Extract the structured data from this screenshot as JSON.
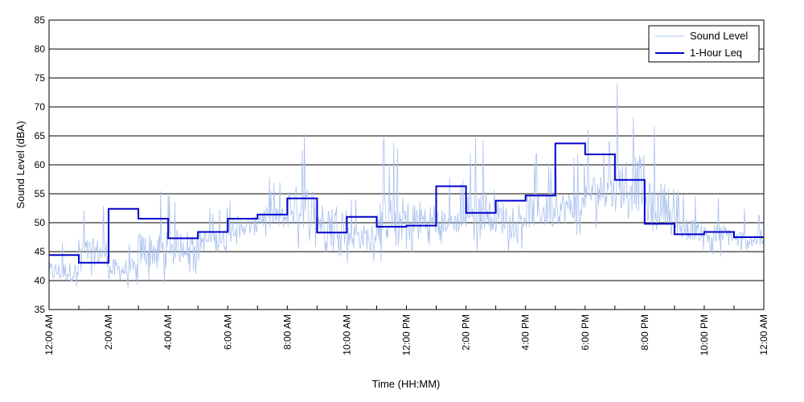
{
  "chart_data": {
    "type": "line",
    "title": "",
    "xlabel": "Time (HH:MM)",
    "ylabel": "Sound Level (dBA)",
    "xlim": [
      0,
      24
    ],
    "ylim": [
      35,
      85
    ],
    "y_ticks": [
      35,
      40,
      45,
      50,
      55,
      60,
      65,
      70,
      75,
      80,
      85
    ],
    "x_ticks": [
      {
        "hour": 0,
        "label": "12:00 AM"
      },
      {
        "hour": 2,
        "label": "2:00 AM"
      },
      {
        "hour": 4,
        "label": "4:00 AM"
      },
      {
        "hour": 6,
        "label": "6:00 AM"
      },
      {
        "hour": 8,
        "label": "8:00 AM"
      },
      {
        "hour": 10,
        "label": "10:00 AM"
      },
      {
        "hour": 12,
        "label": "12:00 PM"
      },
      {
        "hour": 14,
        "label": "2:00 PM"
      },
      {
        "hour": 16,
        "label": "4:00 PM"
      },
      {
        "hour": 18,
        "label": "6:00 PM"
      },
      {
        "hour": 20,
        "label": "8:00 PM"
      },
      {
        "hour": 22,
        "label": "10:00 PM"
      },
      {
        "hour": 24,
        "label": "12:00 AM"
      }
    ],
    "minor_x_ticks_every_hours": 1,
    "grid": {
      "horizontal": true,
      "vertical": false
    },
    "legend": {
      "placement": "top-right"
    },
    "series": [
      {
        "name": "Sound Level",
        "color": "#a9c1ee",
        "style": "thin-line",
        "hourly_min": [
          38,
          40,
          38,
          39,
          41,
          43,
          46,
          47,
          45,
          44,
          43,
          43,
          43,
          46,
          45,
          45,
          46,
          47,
          49,
          47,
          46,
          45,
          44,
          44
        ],
        "hourly_max": [
          48,
          54,
          49,
          57,
          56,
          54,
          56,
          58,
          67,
          62,
          56,
          65,
          64,
          58,
          66,
          62,
          63,
          63,
          67,
          75,
          67,
          56,
          55,
          53
        ]
      },
      {
        "name": "1-Hour Leq",
        "color": "#0000cc",
        "style": "step",
        "x": [
          0,
          1,
          2,
          3,
          4,
          5,
          6,
          7,
          8,
          9,
          10,
          11,
          12,
          13,
          14,
          15,
          16,
          17,
          18,
          19,
          20,
          21,
          22,
          23
        ],
        "values": [
          44.4,
          43.1,
          52.4,
          50.7,
          47.3,
          48.4,
          50.7,
          51.4,
          54.2,
          48.3,
          51.0,
          49.3,
          49.5,
          56.3,
          51.7,
          53.8,
          54.7,
          63.7,
          61.8,
          57.4,
          49.8,
          48.0,
          48.4,
          47.5
        ]
      }
    ]
  }
}
